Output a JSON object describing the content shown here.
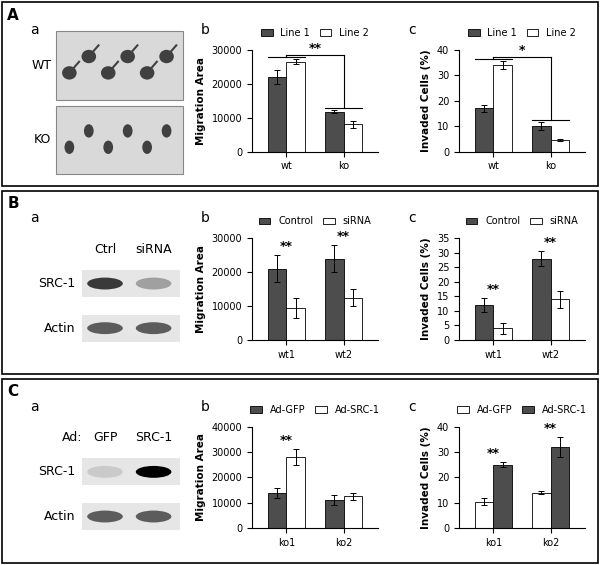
{
  "panels": [
    {
      "letter": "A",
      "image": {
        "label": "a",
        "rows": [
          "WT",
          "KO"
        ]
      }
    },
    {
      "letter": "B",
      "blot": {
        "label": "a",
        "lanes": [
          "Ctrl",
          "siRNA"
        ],
        "rows": [
          "SRC-1",
          "Actin"
        ]
      }
    },
    {
      "letter": "C",
      "blot": {
        "label": "a",
        "lane_title": "Ad:",
        "lanes": [
          "GFP",
          "SRC-1"
        ],
        "rows": [
          "SRC-1",
          "Actin"
        ]
      }
    }
  ],
  "chart_data": [
    {
      "type": "bar",
      "panel": "A",
      "label": "b",
      "y_label": "Migration Area",
      "categories": [
        "wt",
        "ko"
      ],
      "series": [
        {
          "name": "Line 1",
          "color": "#4d4d4d",
          "values": [
            22000,
            11800
          ],
          "errors": [
            2000,
            500
          ]
        },
        {
          "name": "Line 2",
          "color": "#ffffff",
          "values": [
            26500,
            8000
          ],
          "errors": [
            800,
            1000
          ]
        }
      ],
      "ylim": [
        0,
        30000
      ],
      "yticks": [
        0,
        10000,
        20000,
        30000
      ],
      "legend": "upper center",
      "annotations": [
        {
          "text": "**",
          "between": [
            "wt",
            "ko"
          ]
        }
      ]
    },
    {
      "type": "bar",
      "panel": "A",
      "label": "c",
      "y_label": "Invaded Cells (%)",
      "categories": [
        "wt",
        "ko"
      ],
      "series": [
        {
          "name": "Line 1",
          "color": "#4d4d4d",
          "values": [
            17,
            10
          ],
          "errors": [
            1.5,
            1.5
          ]
        },
        {
          "name": "Line 2",
          "color": "#ffffff",
          "values": [
            34,
            4.5
          ],
          "errors": [
            1.5,
            0.5
          ]
        }
      ],
      "ylim": [
        0,
        40
      ],
      "yticks": [
        0,
        10,
        20,
        30,
        40
      ],
      "legend": "upper center",
      "annotations": [
        {
          "text": "*",
          "between": [
            "wt",
            "ko"
          ]
        }
      ]
    },
    {
      "type": "bar",
      "panel": "B",
      "label": "b",
      "y_label": "Migration Area",
      "categories": [
        "wt1",
        "wt2"
      ],
      "series": [
        {
          "name": "Control",
          "color": "#4d4d4d",
          "values": [
            21000,
            24000
          ],
          "errors": [
            4000,
            4000
          ]
        },
        {
          "name": "siRNA",
          "color": "#ffffff",
          "values": [
            9500,
            12500
          ],
          "errors": [
            3000,
            2500
          ]
        }
      ],
      "ylim": [
        0,
        30000
      ],
      "yticks": [
        0,
        10000,
        20000,
        30000
      ],
      "legend": "upper center",
      "annotations": [
        {
          "text": "**",
          "at": "wt1"
        },
        {
          "text": "**",
          "at": "wt2"
        }
      ]
    },
    {
      "type": "bar",
      "panel": "B",
      "label": "c",
      "y_label": "Invaded Cells (%)",
      "categories": [
        "wt1",
        "wt2"
      ],
      "series": [
        {
          "name": "Control",
          "color": "#4d4d4d",
          "values": [
            12,
            28
          ],
          "errors": [
            2.5,
            2.5
          ]
        },
        {
          "name": "siRNA",
          "color": "#ffffff",
          "values": [
            4,
            14
          ],
          "errors": [
            2,
            3
          ]
        }
      ],
      "ylim": [
        0,
        35
      ],
      "yticks": [
        0,
        5,
        10,
        15,
        20,
        25,
        30,
        35
      ],
      "legend": "upper center",
      "annotations": [
        {
          "text": "**",
          "at": "wt1"
        },
        {
          "text": "**",
          "at": "wt2"
        }
      ]
    },
    {
      "type": "bar",
      "panel": "C",
      "label": "b",
      "y_label": "Migration Area",
      "categories": [
        "ko1",
        "ko2"
      ],
      "series": [
        {
          "name": "Ad-GFP",
          "color": "#4d4d4d",
          "values": [
            14000,
            11000
          ],
          "errors": [
            2000,
            2000
          ]
        },
        {
          "name": "Ad-SRC-1",
          "color": "#ffffff",
          "values": [
            28000,
            12500
          ],
          "errors": [
            3000,
            1500
          ]
        }
      ],
      "ylim": [
        0,
        40000
      ],
      "yticks": [
        0,
        10000,
        20000,
        30000,
        40000
      ],
      "legend": "upper center",
      "annotations": [
        {
          "text": "**",
          "at": "ko1"
        }
      ]
    },
    {
      "type": "bar",
      "panel": "C",
      "label": "c",
      "y_label": "Invaded Cells (%)",
      "categories": [
        "ko1",
        "ko2"
      ],
      "series": [
        {
          "name": "Ad-GFP",
          "color": "#ffffff",
          "values": [
            10.5,
            14
          ],
          "errors": [
            1.5,
            0.5
          ]
        },
        {
          "name": "Ad-SRC-1",
          "color": "#4d4d4d",
          "values": [
            25,
            32
          ],
          "errors": [
            1,
            4
          ]
        }
      ],
      "ylim": [
        0,
        40
      ],
      "yticks": [
        0,
        10,
        20,
        30,
        40
      ],
      "legend": "upper center",
      "annotations": [
        {
          "text": "**",
          "at": "ko1"
        },
        {
          "text": "**",
          "at": "ko2"
        }
      ]
    }
  ]
}
